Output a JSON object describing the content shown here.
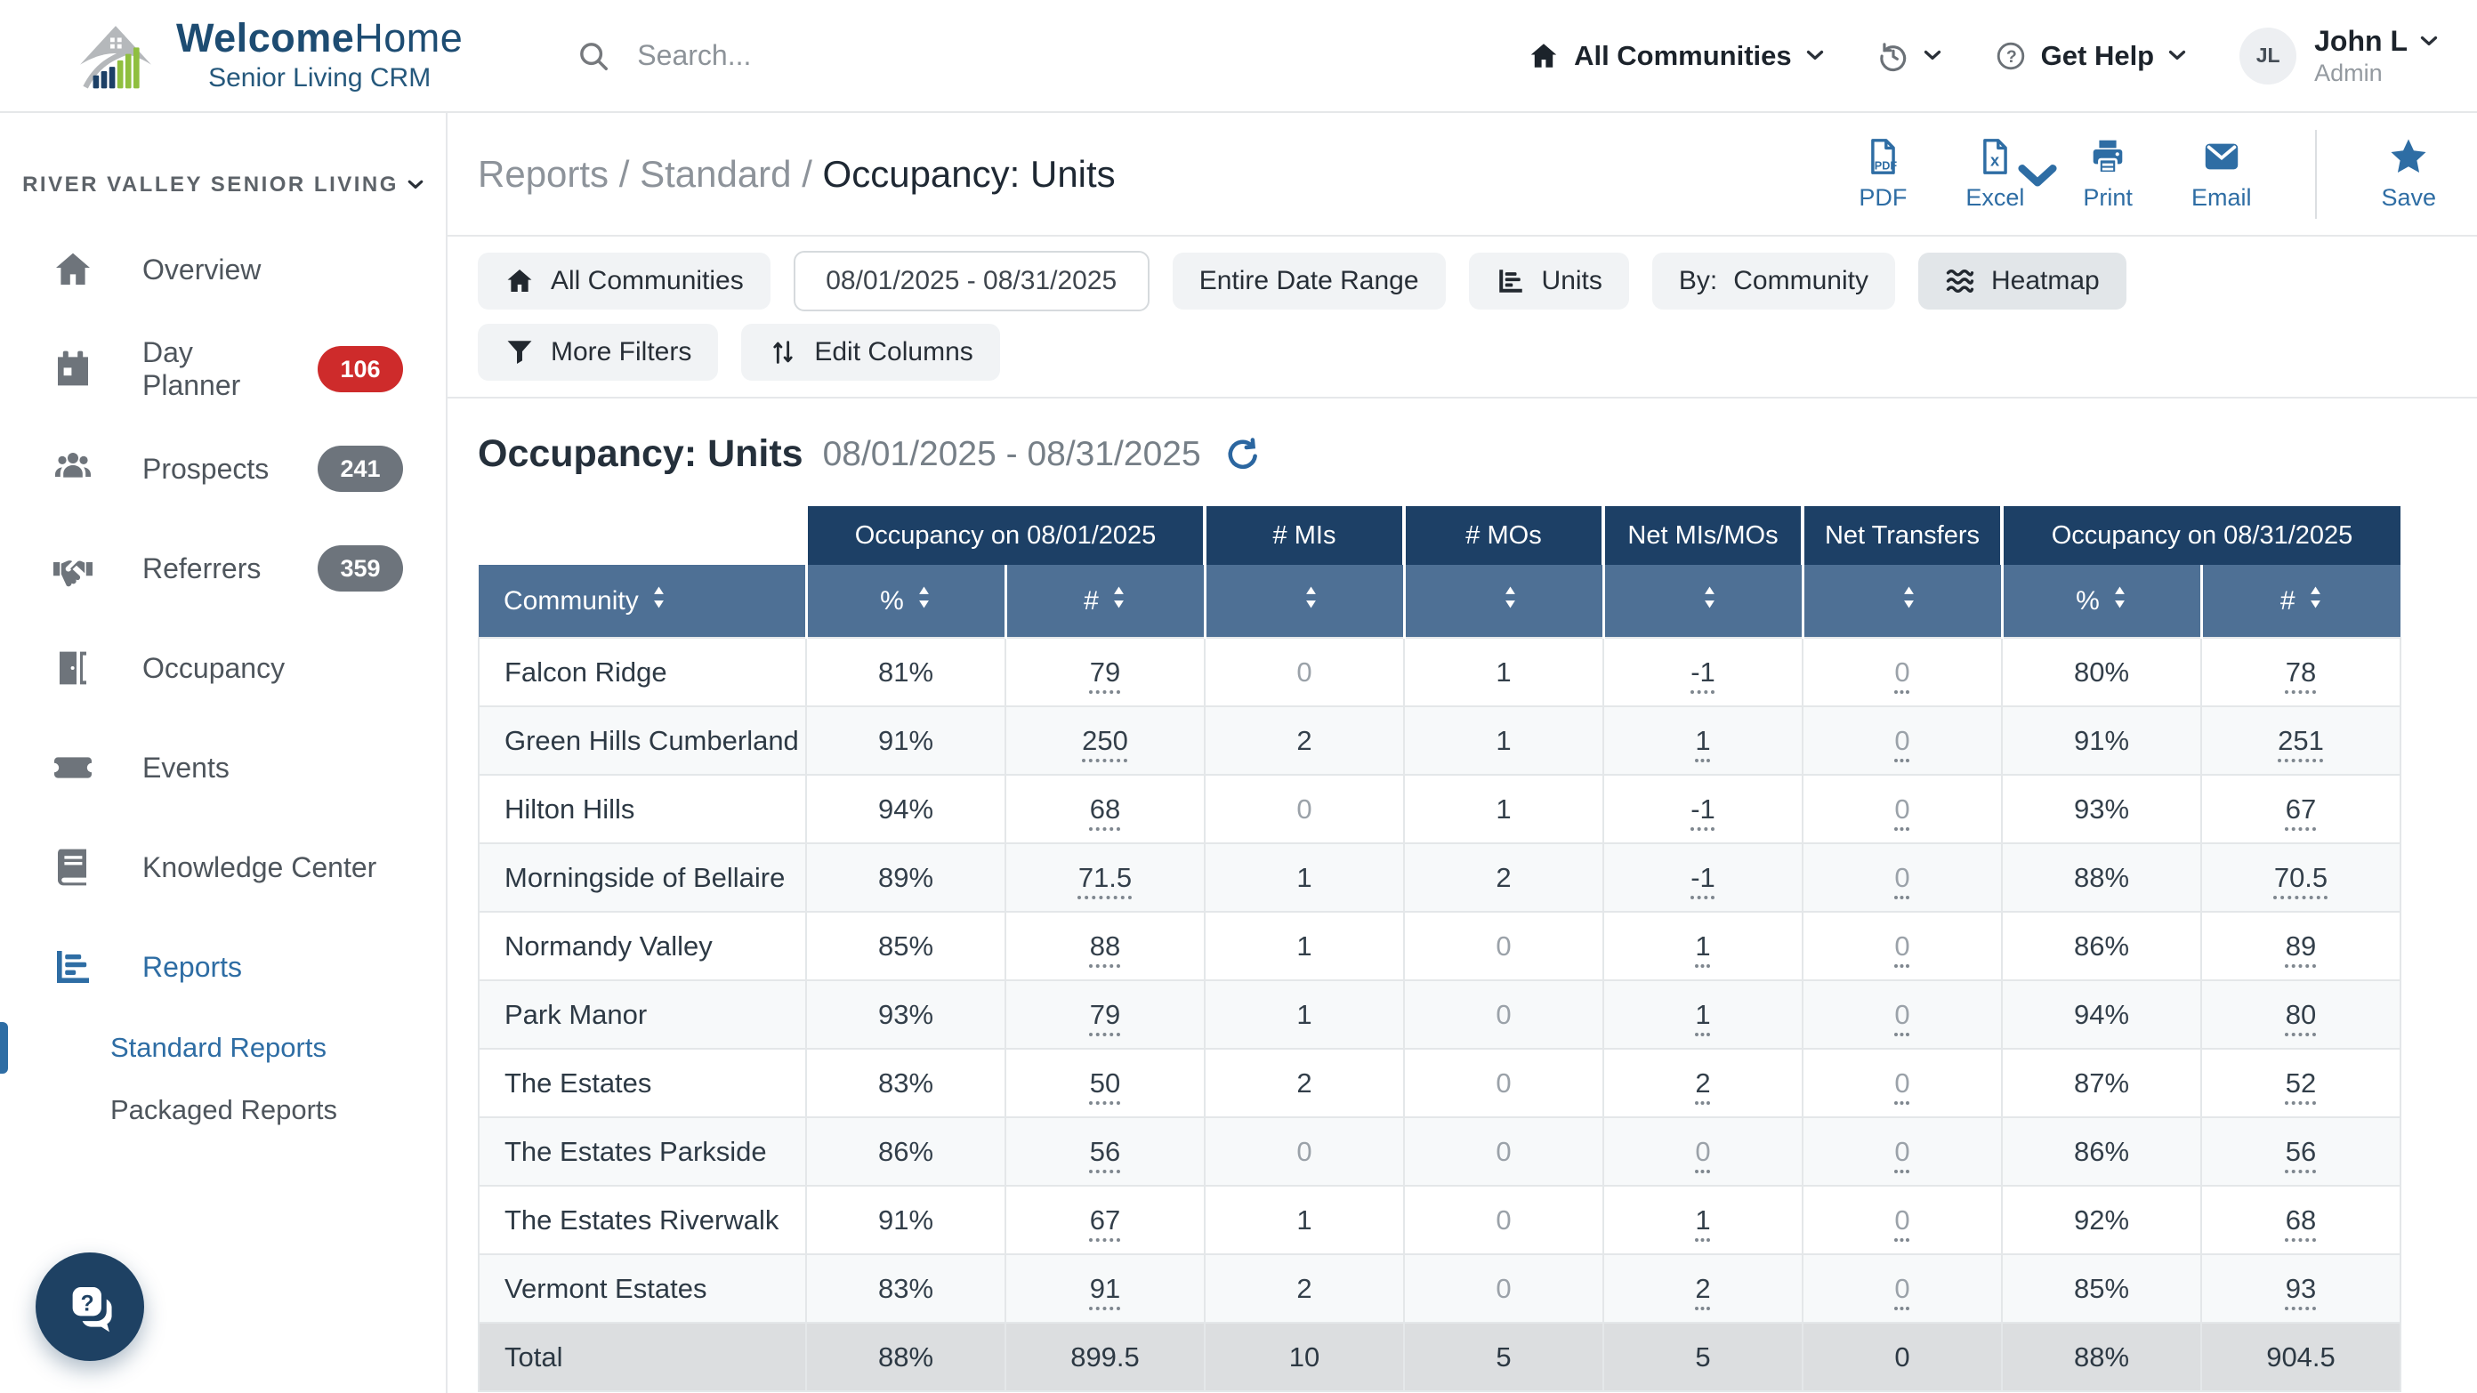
{
  "colors": {
    "accent_blue": "#2e6da4",
    "header_navy": "#1d4066",
    "subheader_slate": "#4e7095",
    "badge_red": "#ce2b2b",
    "badge_gray": "#6d747c",
    "total_row_bg": "#dcdee0"
  },
  "header": {
    "brand_bold": "Welcome",
    "brand_light": "Home",
    "brand_subtitle": "Senior Living CRM",
    "search_placeholder": "Search...",
    "all_communities": "All Communities",
    "get_help": "Get Help",
    "user_initials": "JL",
    "user_name": "John L",
    "user_role": "Admin"
  },
  "sidebar": {
    "org": "RIVER VALLEY SENIOR LIVING",
    "items": [
      {
        "label": "Overview",
        "icon": "home-icon"
      },
      {
        "label": "Day Planner",
        "icon": "calendar-icon",
        "badge": "106",
        "badge_color": "red"
      },
      {
        "label": "Prospects",
        "icon": "users-icon",
        "badge": "241",
        "badge_color": "gray"
      },
      {
        "label": "Referrers",
        "icon": "handshake-icon",
        "badge": "359",
        "badge_color": "gray"
      },
      {
        "label": "Occupancy",
        "icon": "door-icon"
      },
      {
        "label": "Events",
        "icon": "ticket-icon"
      },
      {
        "label": "Knowledge Center",
        "icon": "book-icon"
      },
      {
        "label": "Reports",
        "icon": "bar-chart-icon",
        "active": true
      }
    ],
    "sub_items": [
      {
        "label": "Standard Reports",
        "active": true
      },
      {
        "label": "Packaged Reports",
        "active": false
      }
    ]
  },
  "breadcrumb": {
    "path": "Reports / Standard / ",
    "current": "Occupancy: Units"
  },
  "toolbar": {
    "pdf": "PDF",
    "excel": "Excel",
    "print": "Print",
    "email": "Email",
    "save": "Save"
  },
  "filters": {
    "all_communities": "All Communities",
    "date_range": "08/01/2025 - 08/31/2025",
    "entire_date_range": "Entire Date Range",
    "units": "Units",
    "by_label": "By:",
    "by_value": "Community",
    "heatmap": "Heatmap",
    "more_filters": "More Filters",
    "edit_columns": "Edit Columns"
  },
  "report": {
    "title": "Occupancy: Units",
    "date_range": "08/01/2025 - 08/31/2025"
  },
  "table": {
    "group_headers": [
      {
        "label": "",
        "span": 1
      },
      {
        "label": "Occupancy on 08/01/2025",
        "span": 2
      },
      {
        "label": "# MIs",
        "span": 1
      },
      {
        "label": "# MOs",
        "span": 1
      },
      {
        "label": "Net MIs/MOs",
        "span": 1
      },
      {
        "label": "Net Transfers",
        "span": 1
      },
      {
        "label": "Occupancy on 08/31/2025",
        "span": 2
      }
    ],
    "sort_headers": [
      "Community",
      "%",
      "#",
      "",
      "",
      "",
      "",
      "%",
      "#"
    ],
    "rows": [
      {
        "community": "Falcon Ridge",
        "cells": [
          {
            "v": "81%"
          },
          {
            "v": "79",
            "u": true
          },
          {
            "v": "0",
            "m": true
          },
          {
            "v": "1"
          },
          {
            "v": "-1",
            "u": true
          },
          {
            "v": "0",
            "m": true,
            "u": true
          },
          {
            "v": "80%"
          },
          {
            "v": "78",
            "u": true
          }
        ]
      },
      {
        "community": "Green Hills Cumberland",
        "cells": [
          {
            "v": "91%"
          },
          {
            "v": "250",
            "u": true
          },
          {
            "v": "2"
          },
          {
            "v": "1"
          },
          {
            "v": "1",
            "u": true
          },
          {
            "v": "0",
            "m": true,
            "u": true
          },
          {
            "v": "91%"
          },
          {
            "v": "251",
            "u": true
          }
        ]
      },
      {
        "community": "Hilton Hills",
        "cells": [
          {
            "v": "94%"
          },
          {
            "v": "68",
            "u": true
          },
          {
            "v": "0",
            "m": true
          },
          {
            "v": "1"
          },
          {
            "v": "-1",
            "u": true
          },
          {
            "v": "0",
            "m": true,
            "u": true
          },
          {
            "v": "93%"
          },
          {
            "v": "67",
            "u": true
          }
        ]
      },
      {
        "community": "Morningside of Bellaire",
        "cells": [
          {
            "v": "89%"
          },
          {
            "v": "71.5",
            "u": true
          },
          {
            "v": "1"
          },
          {
            "v": "2"
          },
          {
            "v": "-1",
            "u": true
          },
          {
            "v": "0",
            "m": true,
            "u": true
          },
          {
            "v": "88%"
          },
          {
            "v": "70.5",
            "u": true
          }
        ]
      },
      {
        "community": "Normandy Valley",
        "cells": [
          {
            "v": "85%"
          },
          {
            "v": "88",
            "u": true
          },
          {
            "v": "1"
          },
          {
            "v": "0",
            "m": true
          },
          {
            "v": "1",
            "u": true
          },
          {
            "v": "0",
            "m": true,
            "u": true
          },
          {
            "v": "86%"
          },
          {
            "v": "89",
            "u": true
          }
        ]
      },
      {
        "community": "Park Manor",
        "cells": [
          {
            "v": "93%"
          },
          {
            "v": "79",
            "u": true
          },
          {
            "v": "1"
          },
          {
            "v": "0",
            "m": true
          },
          {
            "v": "1",
            "u": true
          },
          {
            "v": "0",
            "m": true,
            "u": true
          },
          {
            "v": "94%"
          },
          {
            "v": "80",
            "u": true
          }
        ]
      },
      {
        "community": "The Estates",
        "cells": [
          {
            "v": "83%"
          },
          {
            "v": "50",
            "u": true
          },
          {
            "v": "2"
          },
          {
            "v": "0",
            "m": true
          },
          {
            "v": "2",
            "u": true
          },
          {
            "v": "0",
            "m": true,
            "u": true
          },
          {
            "v": "87%"
          },
          {
            "v": "52",
            "u": true
          }
        ]
      },
      {
        "community": "The Estates Parkside",
        "cells": [
          {
            "v": "86%"
          },
          {
            "v": "56",
            "u": true
          },
          {
            "v": "0",
            "m": true
          },
          {
            "v": "0",
            "m": true
          },
          {
            "v": "0",
            "m": true,
            "u": true
          },
          {
            "v": "0",
            "m": true,
            "u": true
          },
          {
            "v": "86%"
          },
          {
            "v": "56",
            "u": true
          }
        ]
      },
      {
        "community": "The Estates Riverwalk",
        "cells": [
          {
            "v": "91%"
          },
          {
            "v": "67",
            "u": true
          },
          {
            "v": "1"
          },
          {
            "v": "0",
            "m": true
          },
          {
            "v": "1",
            "u": true
          },
          {
            "v": "0",
            "m": true,
            "u": true
          },
          {
            "v": "92%"
          },
          {
            "v": "68",
            "u": true
          }
        ]
      },
      {
        "community": "Vermont Estates",
        "cells": [
          {
            "v": "83%"
          },
          {
            "v": "91",
            "u": true
          },
          {
            "v": "2"
          },
          {
            "v": "0",
            "m": true
          },
          {
            "v": "2",
            "u": true
          },
          {
            "v": "0",
            "m": true,
            "u": true
          },
          {
            "v": "85%"
          },
          {
            "v": "93",
            "u": true
          }
        ]
      }
    ],
    "total_row": {
      "label": "Total",
      "cells": [
        "88%",
        "899.5",
        "10",
        "5",
        "5",
        "0",
        "88%",
        "904.5"
      ]
    }
  }
}
